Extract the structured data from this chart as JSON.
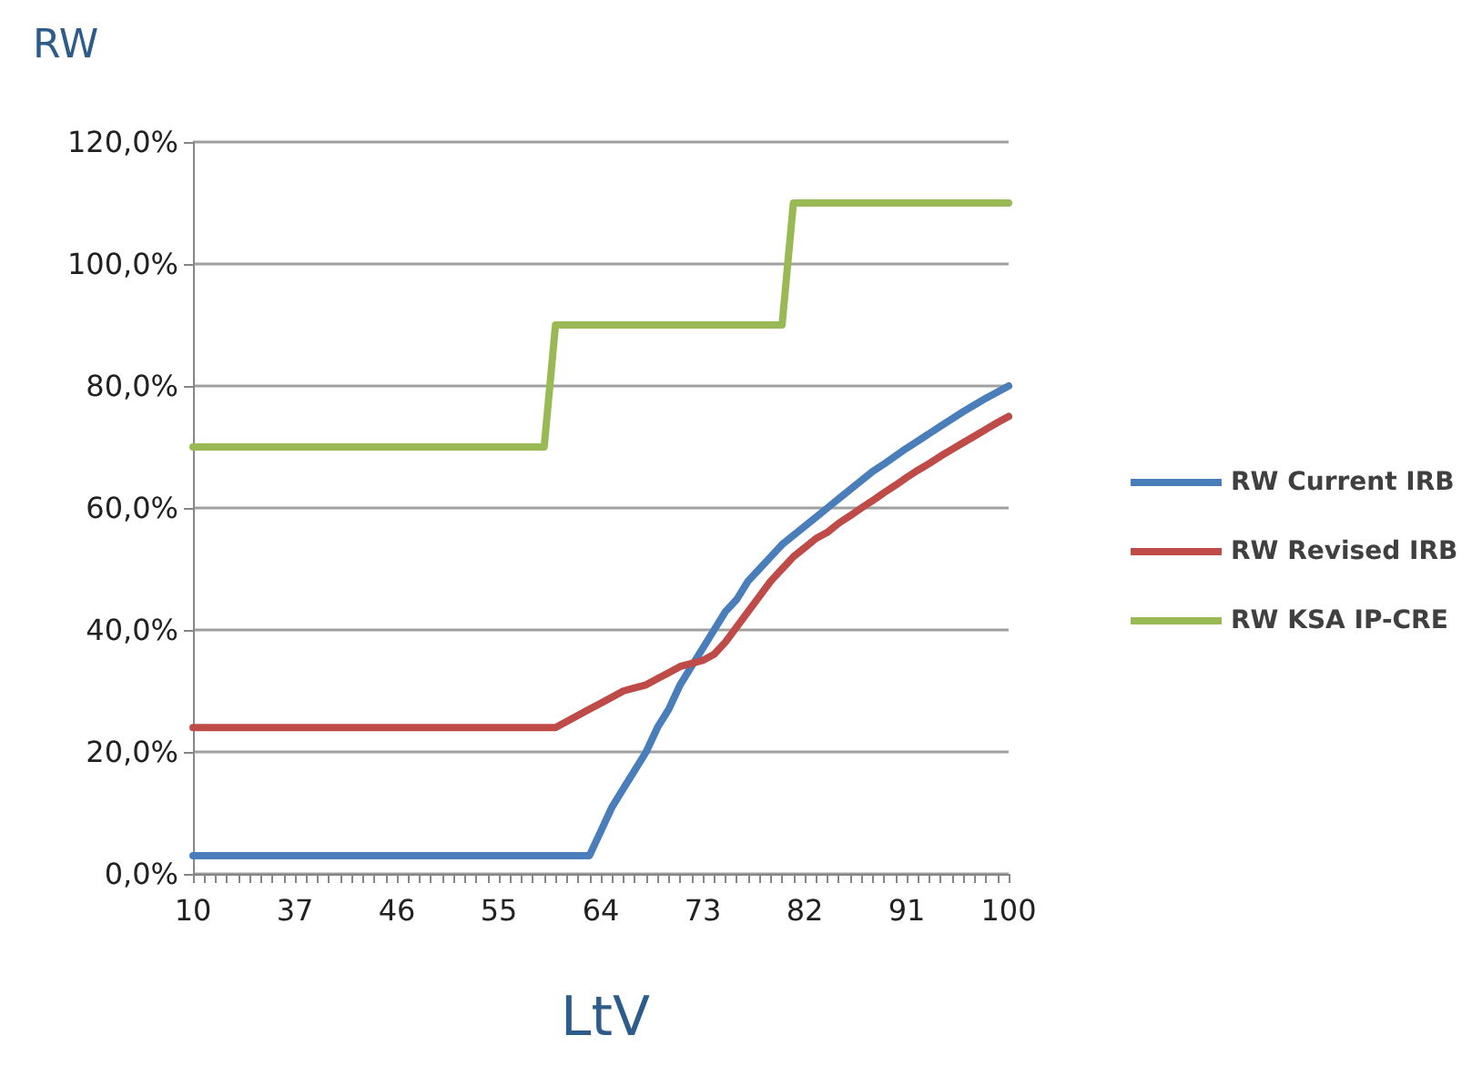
{
  "chart_data": {
    "type": "line",
    "ylabel": "RW",
    "xlabel": "LtV",
    "categories": [
      "10",
      null,
      null,
      null,
      null,
      null,
      null,
      null,
      null,
      "37",
      null,
      null,
      null,
      null,
      null,
      null,
      null,
      null,
      "46",
      null,
      null,
      null,
      null,
      null,
      null,
      null,
      null,
      "55",
      null,
      null,
      null,
      null,
      null,
      null,
      null,
      null,
      "64",
      null,
      null,
      null,
      null,
      null,
      null,
      null,
      null,
      "73",
      null,
      null,
      null,
      null,
      null,
      null,
      null,
      null,
      "82",
      null,
      null,
      null,
      null,
      null,
      null,
      null,
      null,
      "91",
      null,
      null,
      null,
      null,
      null,
      null,
      null,
      null,
      "100"
    ],
    "series": [
      {
        "name": "RW Current IRB",
        "color": "#4a7ebb",
        "values": [
          3,
          3,
          3,
          3,
          3,
          3,
          3,
          3,
          3,
          3,
          3,
          3,
          3,
          3,
          3,
          3,
          3,
          3,
          3,
          3,
          3,
          3,
          3,
          3,
          3,
          3,
          3,
          3,
          3,
          3,
          3,
          3,
          3,
          3,
          3,
          3,
          7,
          11,
          14,
          17,
          20,
          24,
          27,
          31,
          34,
          37,
          40,
          43,
          45,
          48,
          50,
          52,
          54,
          55.5,
          57,
          58.5,
          60,
          61.5,
          63,
          64.5,
          66,
          67.2,
          68.5,
          69.8,
          71,
          72.2,
          73.4,
          74.6,
          75.8,
          76.9,
          78,
          79,
          80
        ]
      },
      {
        "name": "RW Revised IRB",
        "color": "#be4b48",
        "values": [
          24,
          24,
          24,
          24,
          24,
          24,
          24,
          24,
          24,
          24,
          24,
          24,
          24,
          24,
          24,
          24,
          24,
          24,
          24,
          24,
          24,
          24,
          24,
          24,
          24,
          24,
          24,
          24,
          24,
          24,
          24,
          24,
          24,
          25,
          26,
          27,
          28,
          29,
          30,
          30.5,
          31,
          32,
          33,
          34,
          34.5,
          35,
          36,
          38,
          40.5,
          43,
          45.5,
          48,
          50,
          52,
          53.5,
          55,
          56,
          57.5,
          58.7,
          60,
          61.2,
          62.5,
          63.7,
          65,
          66.2,
          67.3,
          68.5,
          69.6,
          70.7,
          71.8,
          72.9,
          74,
          75
        ]
      },
      {
        "name": "RW KSA IP-CRE",
        "color": "#98b954",
        "values": [
          70,
          70,
          70,
          70,
          70,
          70,
          70,
          70,
          70,
          70,
          70,
          70,
          70,
          70,
          70,
          70,
          70,
          70,
          70,
          70,
          70,
          70,
          70,
          70,
          70,
          70,
          70,
          70,
          70,
          70,
          70,
          70,
          90,
          90,
          90,
          90,
          90,
          90,
          90,
          90,
          90,
          90,
          90,
          90,
          90,
          90,
          90,
          90,
          90,
          90,
          90,
          90,
          90,
          110,
          110,
          110,
          110,
          110,
          110,
          110,
          110,
          110,
          110,
          110,
          110,
          110,
          110,
          110,
          110,
          110,
          110,
          110,
          110
        ]
      }
    ],
    "ylim": [
      0,
      120
    ],
    "yticks": [
      {
        "value": 0,
        "label": "0,0%"
      },
      {
        "value": 20,
        "label": "20,0%"
      },
      {
        "value": 40,
        "label": "40,0%"
      },
      {
        "value": 60,
        "label": "60,0%"
      },
      {
        "value": 80,
        "label": "80,0%"
      },
      {
        "value": 100,
        "label": "100,0%"
      },
      {
        "value": 120,
        "label": "120,0%"
      }
    ],
    "grid": "y",
    "legend": "right",
    "marker": "none",
    "line_style": "solid"
  }
}
